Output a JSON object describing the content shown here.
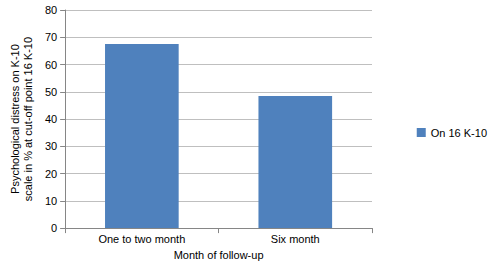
{
  "chart_data": {
    "type": "bar",
    "x_label": "Month of follow-up",
    "y_label": "Psychological distress on K-10 scale in % at cut-off point 16 K-10",
    "categories": [
      "One to two month",
      "Six month"
    ],
    "series": [
      {
        "name": "On 16 K-10",
        "color": "#4f81bd",
        "values": [
          67.5,
          48.5
        ]
      }
    ],
    "ylim": [
      0,
      80
    ],
    "yticks": [
      0,
      10,
      20,
      30,
      40,
      50,
      60,
      70,
      80
    ],
    "grid": true,
    "legend": "right"
  }
}
